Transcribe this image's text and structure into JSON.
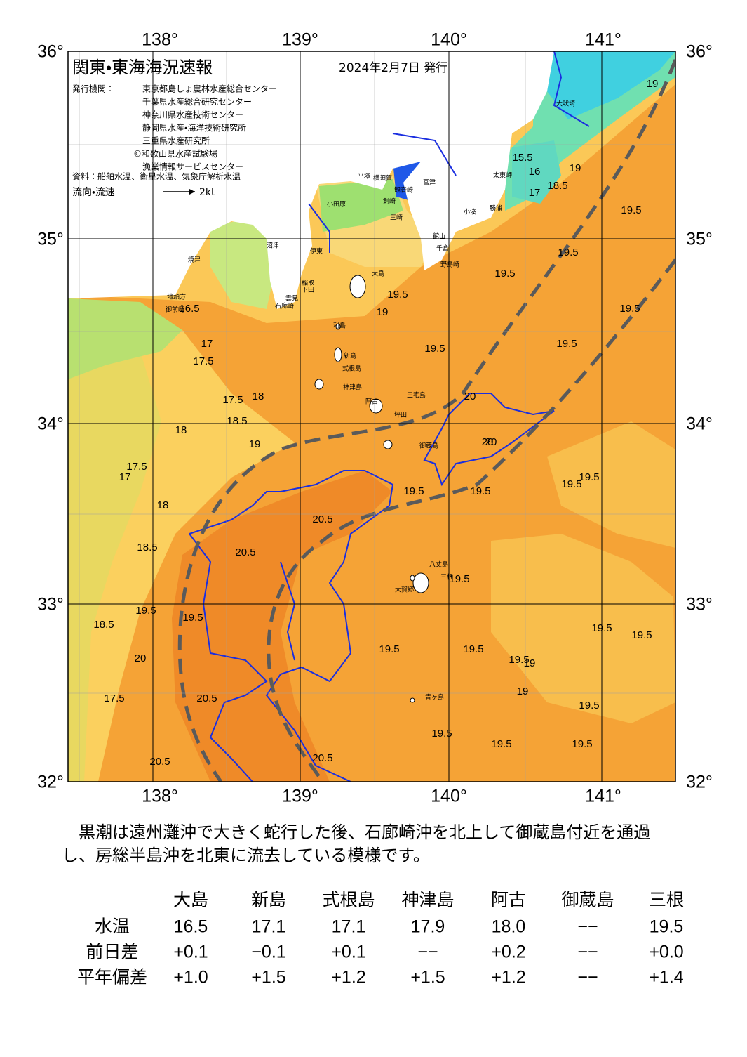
{
  "header": {
    "title": "関東・東海海況速報",
    "date": "2024年2月7日 発行"
  },
  "issuers": {
    "label": "発行機関：",
    "names": [
      "東京都島しょ農林水産総合センター",
      "千葉県水産総合研究センター",
      "神奈川県水産技術センター",
      "静岡県水産・海洋技術研究所",
      "三重県水産研究所",
      "©和歌山県水産試験場",
      "漁業情報サービスセンター"
    ]
  },
  "source": "資料：船舶水温、衛星水温、気象庁解析水温",
  "flow_legend": {
    "label": "流向・流速",
    "speed": "2kt"
  },
  "map": {
    "lon_labels": [
      "138°",
      "139°",
      "140°",
      "141°"
    ],
    "lat_labels": [
      "36°",
      "35°",
      "34°",
      "33°",
      "32°"
    ],
    "place_names": [
      "大吠埼",
      "太東岬",
      "勝浦",
      "小湊",
      "野島崎",
      "千倉",
      "館山",
      "富津",
      "横須賀",
      "観音崎",
      "剣崎",
      "三崎",
      "平塚",
      "小田原",
      "大島",
      "利島",
      "新島",
      "式根島",
      "神津島",
      "三宅島",
      "阿古",
      "坪田",
      "御蔵島",
      "八丈島",
      "三根",
      "大賀郷",
      "青ヶ島",
      "沼津",
      "伊東",
      "稲取",
      "下田",
      "雲見",
      "石廊崎",
      "焼津",
      "地頭方",
      "御前崎"
    ],
    "isotherm_labels": [
      "19",
      "19.5",
      "19.5",
      "19.5",
      "19.5",
      "19.5",
      "19.5",
      "19.5",
      "19.5",
      "19.5",
      "19.5",
      "19.5",
      "20.5",
      "20.5",
      "19.5",
      "19.5",
      "18.5",
      "17.5",
      "20.5",
      "19.5",
      "19.5",
      "19.5",
      "19.5",
      "19.5",
      "19.5",
      "20.5",
      "18.5",
      "17.5",
      "17.5",
      "16.5",
      "17.5",
      "18.5",
      "17",
      "18",
      "19",
      "20",
      "19.5",
      "19.5",
      "19.5",
      "19",
      "19",
      "19.5",
      "15.5",
      "16",
      "17",
      "18.5",
      "20",
      "20",
      "19",
      "19",
      "18",
      "17",
      "18",
      "20",
      "20.5"
    ]
  },
  "description": [
    "　黒潮は遠州灘沖で大きく蛇行した後、石廊崎沖を北上して御蔵島付近を通過",
    "し、房総半島沖を北東に流去している模様です。"
  ],
  "table": {
    "columns": [
      "大島",
      "新島",
      "式根島",
      "神津島",
      "阿古",
      "御蔵島",
      "三根"
    ],
    "rows": [
      {
        "label": "水温",
        "values": [
          "16.5",
          "17.1",
          "17.1",
          "17.9",
          "18.0",
          "−−",
          "19.5"
        ]
      },
      {
        "label": "前日差",
        "values": [
          "+0.1",
          "−0.1",
          "+0.1",
          "−−",
          "+0.2",
          "−−",
          "+0.0"
        ]
      },
      {
        "label": "平年偏差",
        "values": [
          "+1.0",
          "+1.5",
          "+1.2",
          "+1.5",
          "+1.2",
          "−−",
          "+1.4"
        ]
      }
    ]
  }
}
